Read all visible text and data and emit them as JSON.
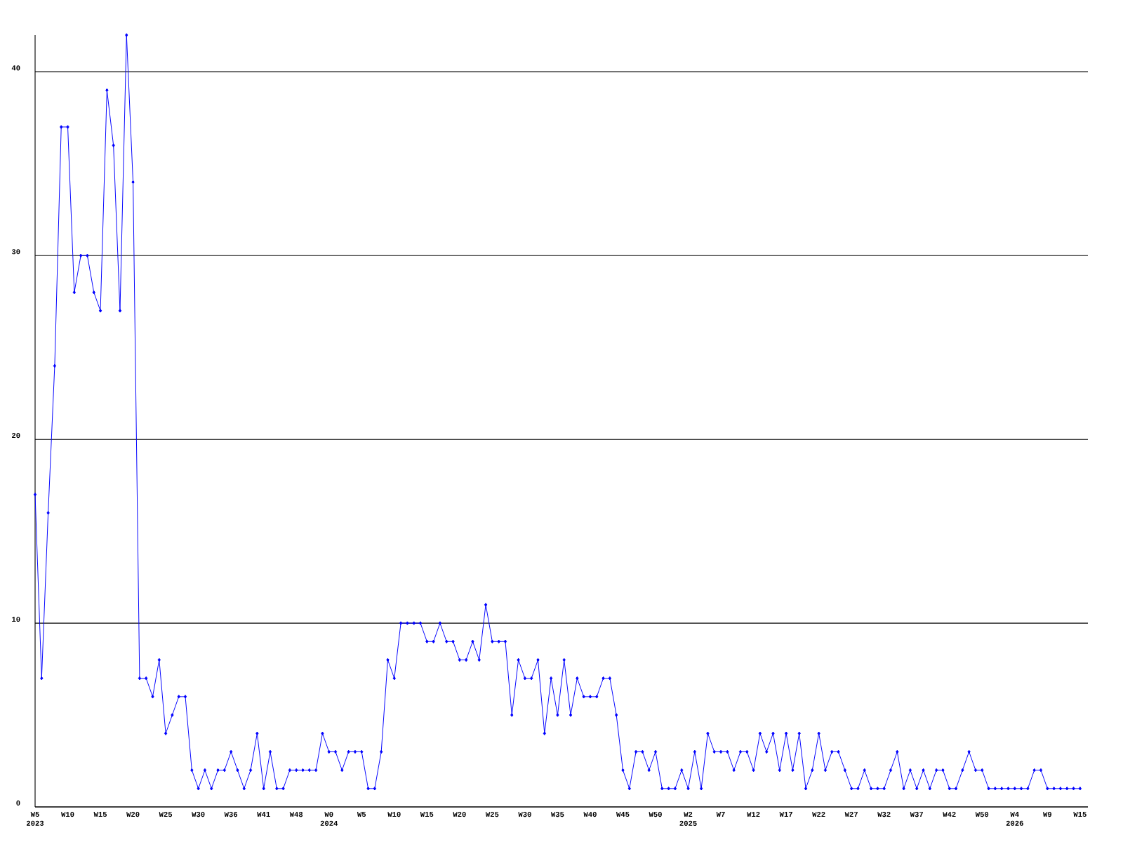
{
  "chart_data": {
    "type": "line",
    "categories": [
      "W5 2023",
      null,
      null,
      null,
      null,
      "W10",
      null,
      null,
      null,
      null,
      "W15",
      null,
      null,
      null,
      null,
      "W20",
      null,
      null,
      null,
      null,
      "W25",
      null,
      null,
      null,
      null,
      "W30",
      null,
      null,
      null,
      null,
      "W36",
      null,
      null,
      null,
      null,
      "W41",
      null,
      null,
      null,
      null,
      "W48",
      null,
      null,
      null,
      null,
      "W0 2024",
      null,
      null,
      null,
      null,
      "W5",
      null,
      null,
      null,
      null,
      "W10",
      null,
      null,
      null,
      null,
      "W15",
      null,
      null,
      null,
      null,
      "W20",
      null,
      null,
      null,
      null,
      "W25",
      null,
      null,
      null,
      null,
      "W30",
      null,
      null,
      null,
      null,
      "W35",
      null,
      null,
      null,
      null,
      "W40",
      null,
      null,
      null,
      null,
      "W45",
      null,
      null,
      null,
      null,
      "W50",
      null,
      null,
      null,
      null,
      "W2 2025",
      null,
      null,
      null,
      null,
      "W7",
      null,
      null,
      null,
      null,
      "W12",
      null,
      null,
      null,
      null,
      "W17",
      null,
      null,
      null,
      null,
      "W22",
      null,
      null,
      null,
      null,
      "W27",
      null,
      null,
      null,
      null,
      "W32",
      null,
      null,
      null,
      null,
      "W37",
      null,
      null,
      null,
      null,
      "W42",
      null,
      null,
      null,
      null,
      "W50",
      null,
      null,
      null,
      null,
      "W4 2026",
      null,
      null,
      null,
      null,
      "W9",
      null,
      null,
      null,
      null,
      "W15"
    ],
    "values": [
      17,
      7,
      16,
      24,
      37,
      37,
      28,
      30,
      30,
      28,
      27,
      39,
      36,
      27,
      42,
      34,
      7,
      7,
      6,
      8,
      4,
      5,
      6,
      6,
      2,
      1,
      2,
      1,
      2,
      2,
      3,
      2,
      1,
      2,
      4,
      1,
      3,
      1,
      1,
      2,
      2,
      2,
      2,
      2,
      4,
      3,
      3,
      2,
      3,
      3,
      3,
      1,
      1,
      3,
      8,
      7,
      10,
      10,
      10,
      10,
      9,
      9,
      10,
      9,
      9,
      8,
      8,
      9,
      8,
      11,
      9,
      9,
      9,
      5,
      8,
      7,
      7,
      8,
      4,
      7,
      5,
      8,
      5,
      7,
      6,
      6,
      6,
      7,
      7,
      5,
      2,
      1,
      3,
      3,
      2,
      3,
      1,
      1,
      1,
      2,
      1,
      3,
      1,
      4,
      3,
      3,
      3,
      2,
      3,
      3,
      2,
      4,
      3,
      4,
      2,
      4,
      2,
      4,
      1,
      2,
      4,
      2,
      3,
      3,
      2,
      1,
      1,
      2,
      1,
      1,
      1,
      2,
      3,
      1,
      2,
      1,
      2,
      1,
      2,
      2,
      1,
      1,
      2,
      3,
      2,
      2,
      1,
      1,
      1,
      1,
      1,
      1,
      1,
      2,
      2,
      1,
      1,
      1,
      1,
      1,
      1
    ],
    "color": "#0000ff",
    "ylim": [
      0,
      42
    ],
    "yticks": [
      0,
      10,
      20,
      30,
      40
    ],
    "grid": "y",
    "marker": "diamond"
  }
}
